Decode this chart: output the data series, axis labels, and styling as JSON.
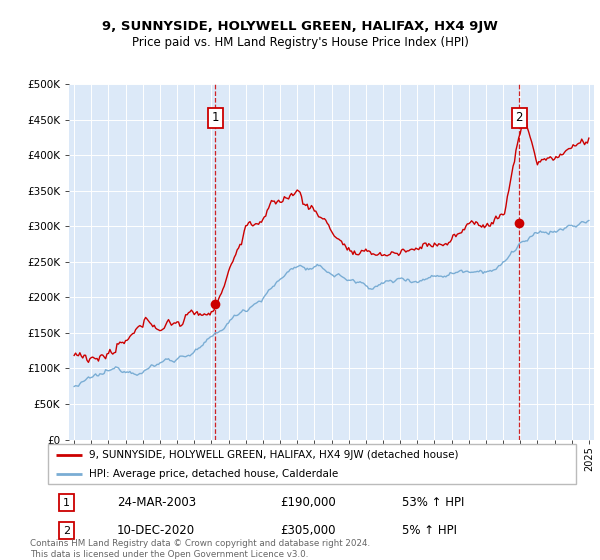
{
  "title": "9, SUNNYSIDE, HOLYWELL GREEN, HALIFAX, HX4 9JW",
  "subtitle": "Price paid vs. HM Land Registry's House Price Index (HPI)",
  "legend_line1": "9, SUNNYSIDE, HOLYWELL GREEN, HALIFAX, HX4 9JW (detached house)",
  "legend_line2": "HPI: Average price, detached house, Calderdale",
  "footer": "Contains HM Land Registry data © Crown copyright and database right 2024.\nThis data is licensed under the Open Government Licence v3.0.",
  "sale1_date": "24-MAR-2003",
  "sale1_price": "£190,000",
  "sale1_hpi": "53% ↑ HPI",
  "sale1_x": 2003.23,
  "sale1_y": 190000,
  "sale2_date": "10-DEC-2020",
  "sale2_price": "£305,000",
  "sale2_hpi": "5% ↑ HPI",
  "sale2_x": 2020.94,
  "sale2_y": 305000,
  "ylim": [
    0,
    500000
  ],
  "xlim": [
    1994.7,
    2025.3
  ],
  "red_color": "#cc0000",
  "blue_color": "#7aadd4",
  "grid_color": "#ffffff",
  "plot_bg": "#dce9f8",
  "yticks": [
    0,
    50000,
    100000,
    150000,
    200000,
    250000,
    300000,
    350000,
    400000,
    450000,
    500000
  ],
  "ytick_labels": [
    "£0",
    "£50K",
    "£100K",
    "£150K",
    "£200K",
    "£250K",
    "£300K",
    "£350K",
    "£400K",
    "£450K",
    "£500K"
  ]
}
